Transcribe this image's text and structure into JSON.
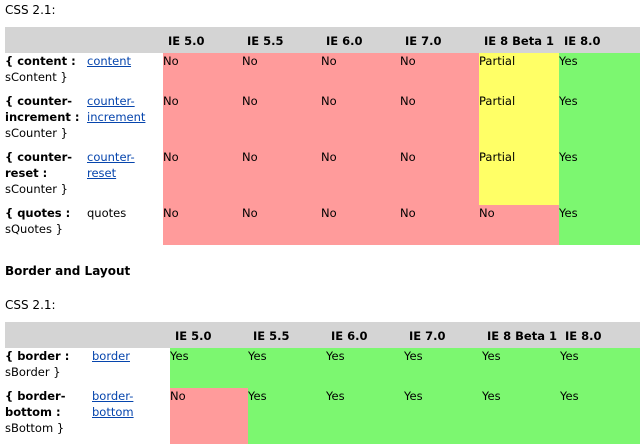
{
  "section1": {
    "label": "CSS 2.1:",
    "headers": [
      "IE 5.0",
      "IE 5.5",
      "IE 6.0",
      "IE 7.0",
      "IE 8 Beta 1",
      "IE 8.0"
    ],
    "rows": [
      {
        "prop": "{ content :",
        "prop2": "sContent }",
        "link_lines": [
          "content"
        ],
        "link_is_link": true,
        "cells": [
          {
            "text": "No",
            "status": "no"
          },
          {
            "text": "No",
            "status": "no"
          },
          {
            "text": "No",
            "status": "no"
          },
          {
            "text": "No",
            "status": "no"
          },
          {
            "text": "Partial",
            "status": "partial"
          },
          {
            "text": "Yes",
            "status": "yes"
          }
        ]
      },
      {
        "prop_lines": [
          "{ counter-",
          "increment :",
          "sCounter }"
        ],
        "link_lines": [
          "counter-",
          "increment"
        ],
        "link_is_link": true,
        "cells": [
          {
            "text": "No",
            "status": "no"
          },
          {
            "text": "No",
            "status": "no"
          },
          {
            "text": "No",
            "status": "no"
          },
          {
            "text": "No",
            "status": "no"
          },
          {
            "text": "Partial",
            "status": "partial"
          },
          {
            "text": "Yes",
            "status": "yes"
          }
        ]
      },
      {
        "prop_lines": [
          "{ counter-",
          "reset :",
          "sCounter }"
        ],
        "link_lines": [
          "counter-",
          "reset"
        ],
        "link_is_link": true,
        "cells": [
          {
            "text": "No",
            "status": "no"
          },
          {
            "text": "No",
            "status": "no"
          },
          {
            "text": "No",
            "status": "no"
          },
          {
            "text": "No",
            "status": "no"
          },
          {
            "text": "Partial",
            "status": "partial"
          },
          {
            "text": "Yes",
            "status": "yes"
          }
        ]
      },
      {
        "prop_lines": [
          "{ quotes :",
          "sQuotes }"
        ],
        "link_lines": [
          "quotes"
        ],
        "link_is_link": false,
        "cells": [
          {
            "text": "No",
            "status": "no"
          },
          {
            "text": "No",
            "status": "no"
          },
          {
            "text": "No",
            "status": "no"
          },
          {
            "text": "No",
            "status": "no"
          },
          {
            "text": "No",
            "status": "no"
          },
          {
            "text": "Yes",
            "status": "yes"
          }
        ]
      }
    ]
  },
  "section2": {
    "heading": "Border and Layout",
    "label": "CSS 2.1:",
    "headers": [
      "IE 5.0",
      "IE 5.5",
      "IE 6.0",
      "IE 7.0",
      "IE 8 Beta 1",
      "IE 8.0"
    ],
    "rows": [
      {
        "prop_lines": [
          "{ border :",
          "sBorder }"
        ],
        "link_lines": [
          "border"
        ],
        "link_is_link": true,
        "cells": [
          {
            "text": "Yes",
            "status": "yes"
          },
          {
            "text": "Yes",
            "status": "yes"
          },
          {
            "text": "Yes",
            "status": "yes"
          },
          {
            "text": "Yes",
            "status": "yes"
          },
          {
            "text": "Yes",
            "status": "yes"
          },
          {
            "text": "Yes",
            "status": "yes"
          }
        ]
      },
      {
        "prop_lines": [
          "{ border-",
          "bottom :",
          "sBottom }"
        ],
        "link_lines": [
          "border-",
          "bottom"
        ],
        "link_is_link": true,
        "cells": [
          {
            "text": "No",
            "status": "no"
          },
          {
            "text": "Yes",
            "status": "yes"
          },
          {
            "text": "Yes",
            "status": "yes"
          },
          {
            "text": "Yes",
            "status": "yes"
          },
          {
            "text": "Yes",
            "status": "yes"
          },
          {
            "text": "Yes",
            "status": "yes"
          }
        ]
      }
    ]
  },
  "colors": {
    "no": "#ff9b9b",
    "yes": "#7cf770",
    "partial": "#ffff66",
    "header": "#d4d4d4",
    "link": "#0645ad"
  }
}
